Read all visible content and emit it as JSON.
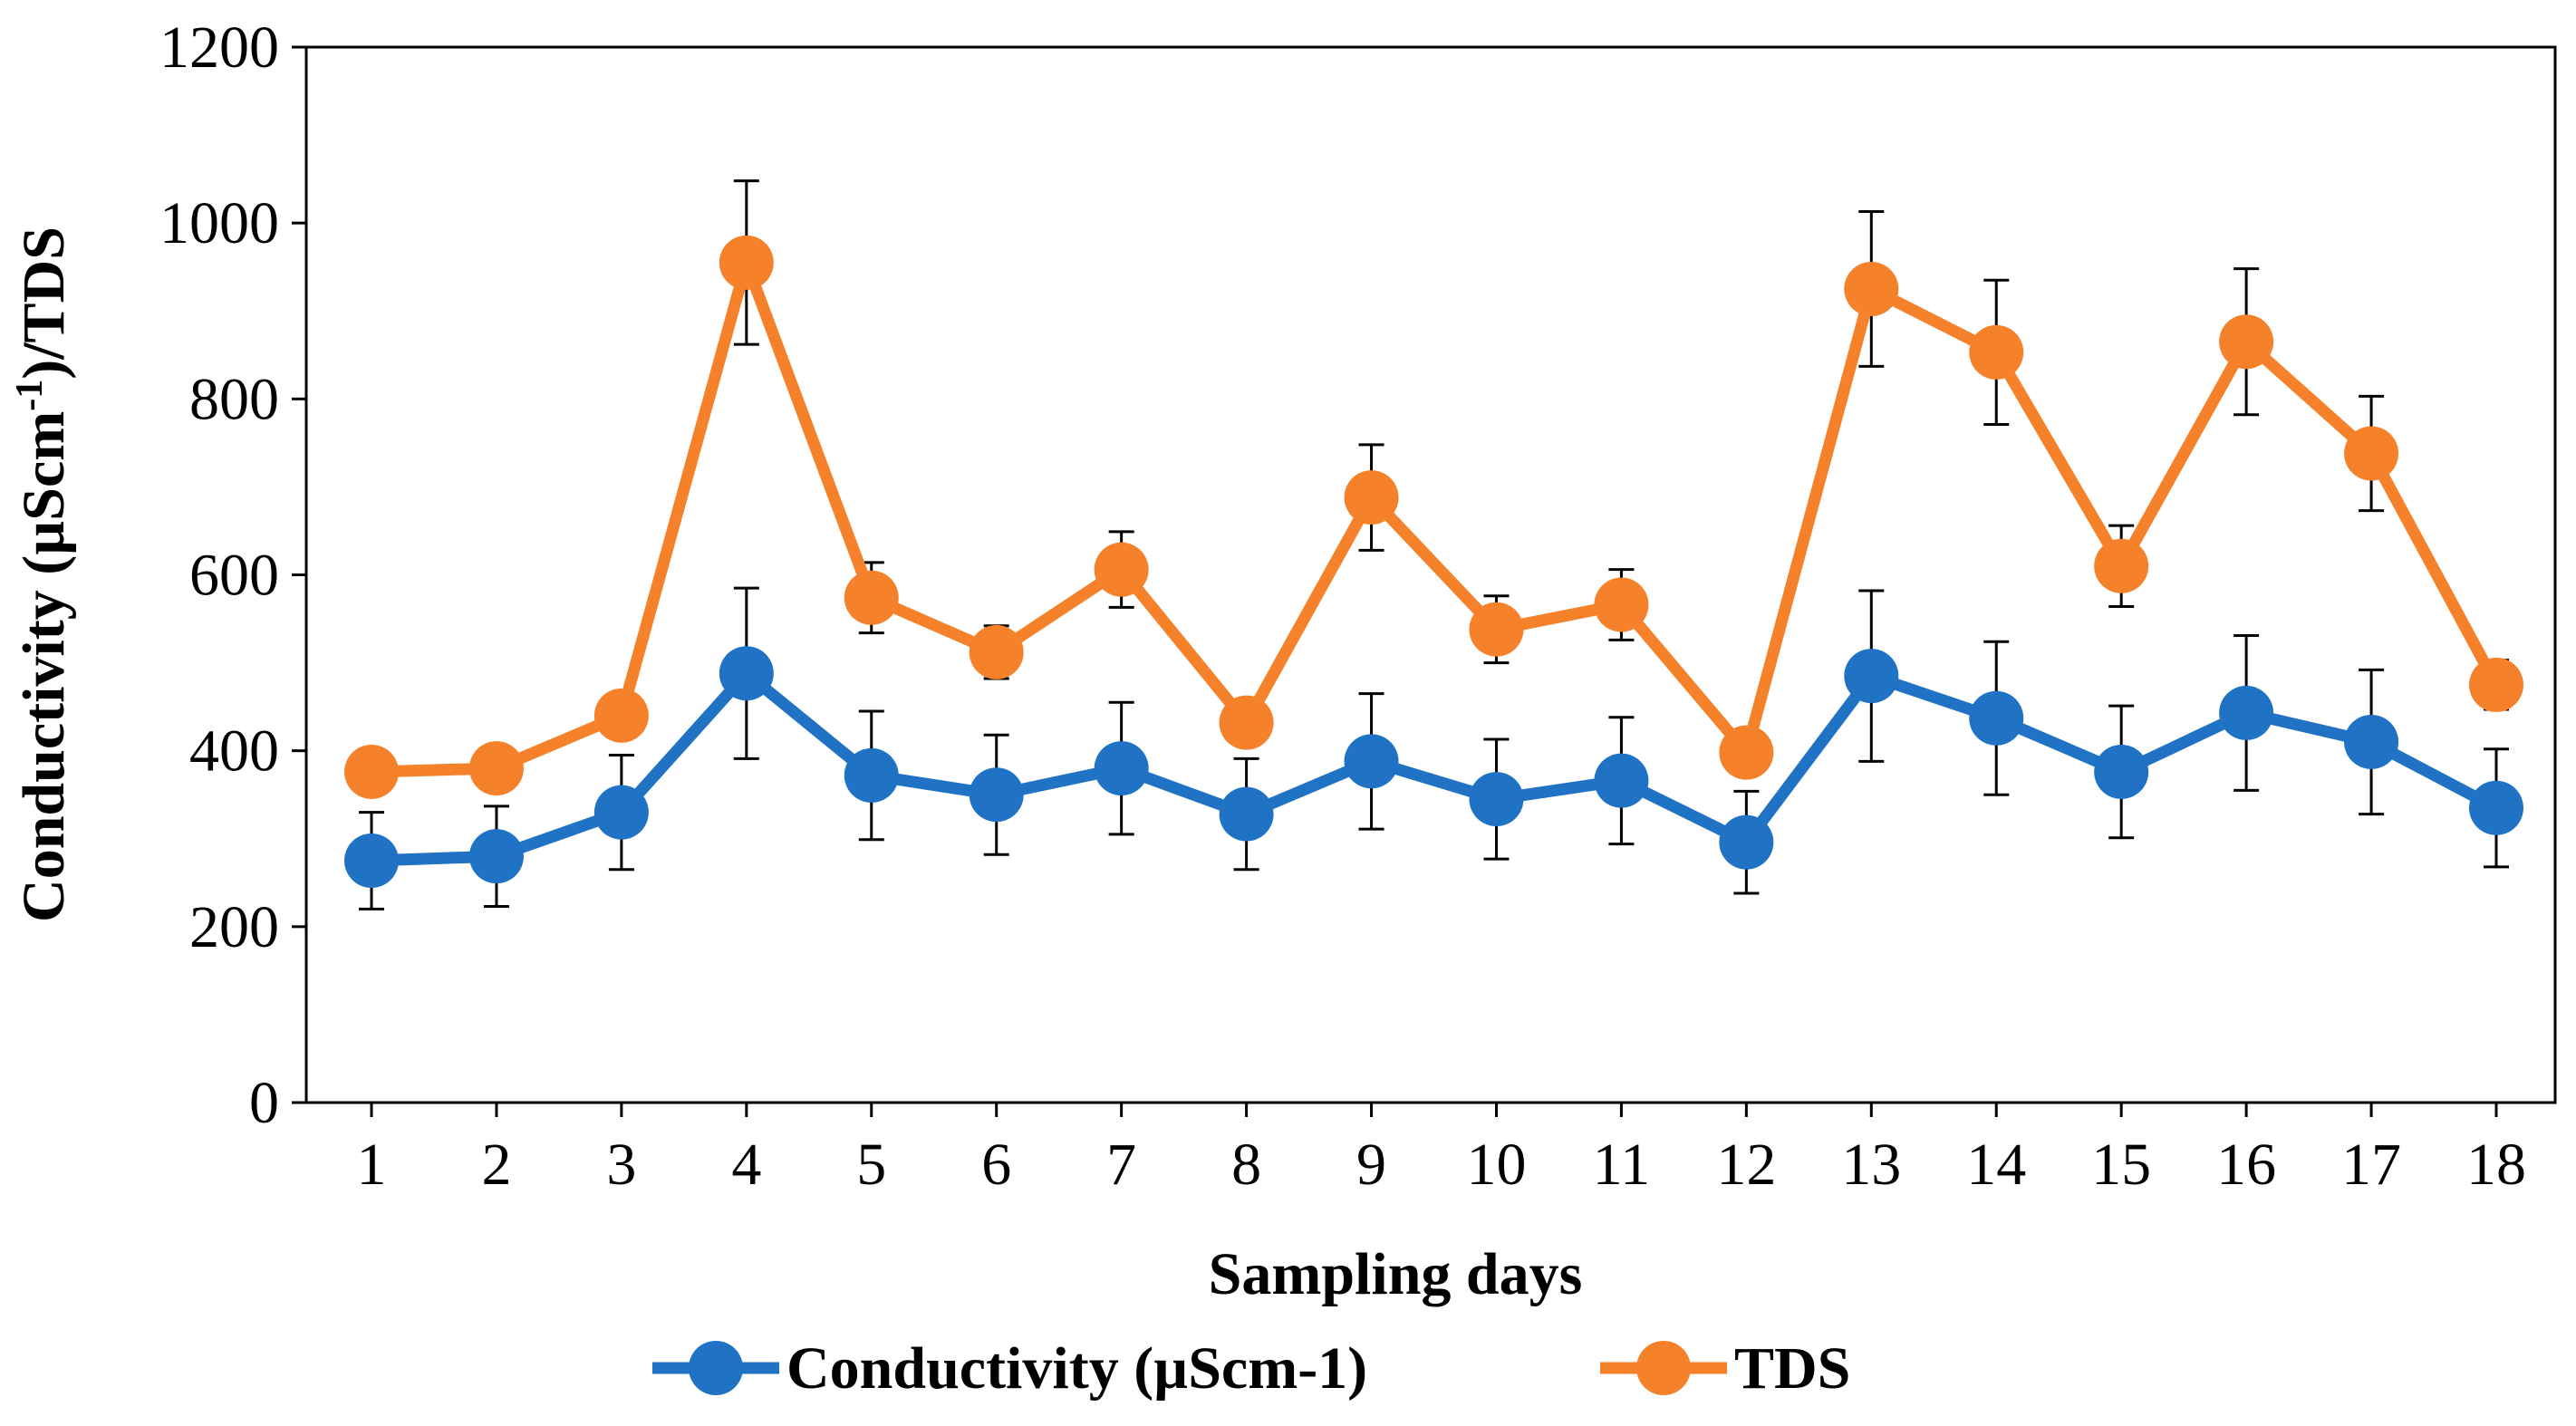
{
  "chart_data": {
    "type": "line",
    "title": "",
    "xlabel": "Sampling days",
    "ylabel": {
      "prefix": "Conductivity (µScm",
      "superscript": "-1",
      "suffix": ")/TDS"
    },
    "ylim": [
      0,
      1200
    ],
    "yticks": [
      0,
      200,
      400,
      600,
      800,
      1000,
      1200
    ],
    "categories": [
      1,
      2,
      3,
      4,
      5,
      6,
      7,
      8,
      9,
      10,
      11,
      12,
      13,
      14,
      15,
      16,
      17,
      18
    ],
    "grid": false,
    "legend_position": "bottom-center",
    "series": [
      {
        "name": "Conductivity (µScm-1)",
        "color": "#1f72c4",
        "values": [
          275,
          280,
          330,
          488,
          372,
          350,
          380,
          328,
          388,
          345,
          366,
          296,
          485,
          437,
          376,
          443,
          410,
          335
        ],
        "errors": [
          55,
          57,
          65,
          97,
          73,
          68,
          75,
          63,
          77,
          68,
          72,
          58,
          97,
          87,
          75,
          88,
          82,
          67
        ]
      },
      {
        "name": "TDS",
        "color": "#f5822a",
        "values": [
          376,
          380,
          440,
          955,
          574,
          512,
          606,
          432,
          688,
          538,
          566,
          398,
          925,
          853,
          610,
          865,
          738,
          475
        ],
        "errors": [
          0,
          0,
          0,
          93,
          40,
          30,
          43,
          0,
          60,
          38,
          40,
          0,
          88,
          82,
          46,
          83,
          65,
          28
        ]
      }
    ]
  }
}
